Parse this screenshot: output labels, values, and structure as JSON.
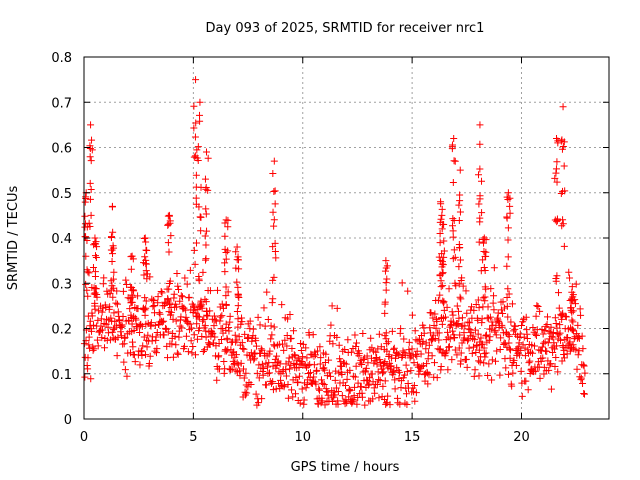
{
  "chart_data": {
    "type": "scatter",
    "title": "Day 093 of 2025, SRMTID for receiver nrc1",
    "xlabel": "GPS time / hours",
    "ylabel": "SRMTID / TECUs",
    "xlim": [
      0,
      24
    ],
    "ylim": [
      0,
      0.8
    ],
    "x_ticks": [
      "0",
      "5",
      "10",
      "15",
      "20"
    ],
    "y_ticks": [
      "0",
      "0.1",
      "0.2",
      "0.3",
      "0.4",
      "0.5",
      "0.6",
      "0.7",
      "0.8"
    ],
    "grid": true,
    "marker": "+",
    "color": "#ff0000",
    "series": [
      {
        "name": "SRMTID",
        "trend": [
          [
            0.0,
            0.14
          ],
          [
            0.5,
            0.22
          ],
          [
            1.0,
            0.23
          ],
          [
            2.0,
            0.2
          ],
          [
            3.0,
            0.2
          ],
          [
            4.0,
            0.22
          ],
          [
            5.0,
            0.22
          ],
          [
            5.5,
            0.21
          ],
          [
            6.0,
            0.18
          ],
          [
            7.0,
            0.15
          ],
          [
            8.0,
            0.13
          ],
          [
            9.0,
            0.12
          ],
          [
            10.0,
            0.11
          ],
          [
            11.0,
            0.09
          ],
          [
            12.0,
            0.08
          ],
          [
            13.0,
            0.09
          ],
          [
            14.0,
            0.1
          ],
          [
            15.0,
            0.11
          ],
          [
            15.5,
            0.14
          ],
          [
            16.0,
            0.18
          ],
          [
            17.0,
            0.2
          ],
          [
            18.0,
            0.18
          ],
          [
            19.0,
            0.18
          ],
          [
            20.0,
            0.16
          ],
          [
            21.0,
            0.15
          ],
          [
            22.0,
            0.2
          ],
          [
            22.5,
            0.18
          ],
          [
            22.9,
            0.1
          ]
        ],
        "spikes": [
          [
            0.1,
            0.5
          ],
          [
            0.3,
            0.65
          ],
          [
            0.5,
            0.4
          ],
          [
            1.3,
            0.47
          ],
          [
            2.2,
            0.36
          ],
          [
            2.8,
            0.4
          ],
          [
            3.9,
            0.45
          ],
          [
            5.1,
            0.75
          ],
          [
            5.3,
            0.7
          ],
          [
            5.6,
            0.59
          ],
          [
            6.5,
            0.44
          ],
          [
            7.0,
            0.38
          ],
          [
            8.7,
            0.57
          ],
          [
            13.8,
            0.35
          ],
          [
            16.3,
            0.48
          ],
          [
            16.4,
            0.43
          ],
          [
            16.9,
            0.62
          ],
          [
            17.2,
            0.55
          ],
          [
            18.1,
            0.65
          ],
          [
            18.3,
            0.4
          ],
          [
            19.4,
            0.5
          ],
          [
            21.6,
            0.62
          ],
          [
            21.9,
            0.69
          ],
          [
            22.3,
            0.28
          ]
        ]
      }
    ]
  }
}
